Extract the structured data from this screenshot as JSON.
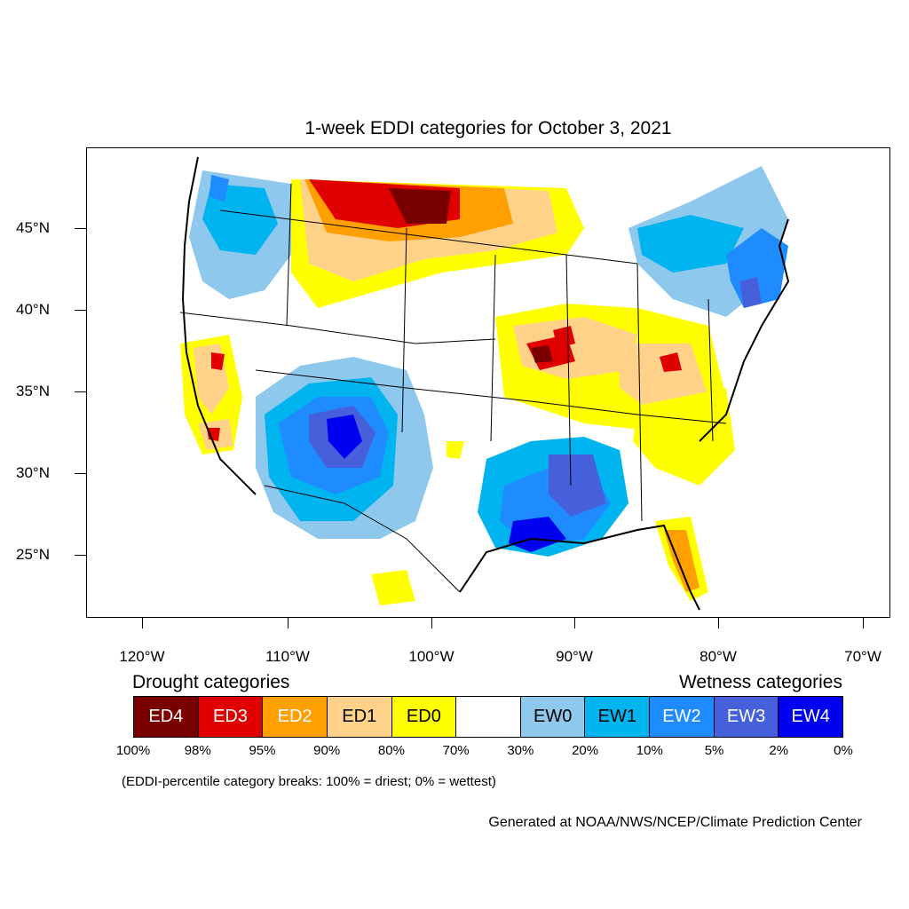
{
  "title": "1-week EDDI categories for October 3, 2021",
  "lat_labels": [
    "45°N",
    "40°N",
    "35°N",
    "30°N",
    "25°N"
  ],
  "lon_labels": [
    "120°W",
    "110°W",
    "100°W",
    "90°W",
    "80°W",
    "70°W"
  ],
  "legend": {
    "drought_heading": "Drought categories",
    "wetness_heading": "Wetness categories",
    "categories": [
      {
        "label": "ED4",
        "color": "#7a0000",
        "text_color": "#ffffff"
      },
      {
        "label": "ED3",
        "color": "#e00000",
        "text_color": "#ffffff"
      },
      {
        "label": "ED2",
        "color": "#ffa000",
        "text_color": "#ffffff"
      },
      {
        "label": "ED1",
        "color": "#ffd28a",
        "text_color": "#000000"
      },
      {
        "label": "ED0",
        "color": "#ffff00",
        "text_color": "#000000"
      },
      {
        "label": "",
        "color": "#ffffff",
        "text_color": "#000000"
      },
      {
        "label": "EW0",
        "color": "#8ec8ec",
        "text_color": "#000000"
      },
      {
        "label": "EW1",
        "color": "#00b4f0",
        "text_color": "#000000"
      },
      {
        "label": "EW2",
        "color": "#1e8cff",
        "text_color": "#ffffff"
      },
      {
        "label": "EW3",
        "color": "#4660dc",
        "text_color": "#ffffff"
      },
      {
        "label": "EW4",
        "color": "#0000f0",
        "text_color": "#ffffff"
      }
    ],
    "breaks": [
      "100%",
      "98%",
      "95%",
      "90%",
      "80%",
      "70%",
      "30%",
      "20%",
      "10%",
      "5%",
      "2%",
      "0%"
    ]
  },
  "note": "(EDDI-percentile category breaks: 100% = driest; 0% = wettest)",
  "credit": "Generated at NOAA/NWS/NCEP/Climate Prediction Center"
}
